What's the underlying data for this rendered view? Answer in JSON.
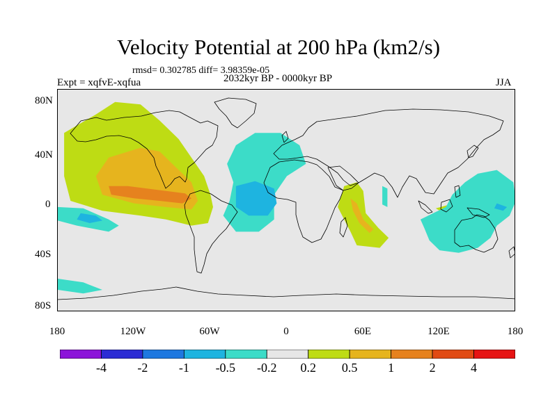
{
  "title": "Velocity Potential at 200 hPa (km2/s)",
  "stats": "rmsd= 0.302785  diff= 3.98359e-05",
  "experiment": "Expt = xqfvE-xqfua",
  "period": "2032kyr BP - 0000kyr BP",
  "season": "JJA",
  "lat_ticks": [
    "80N",
    "40N",
    "0",
    "40S",
    "80S"
  ],
  "lon_ticks": [
    "180",
    "120W",
    "60W",
    "0",
    "60E",
    "120E",
    "180"
  ],
  "colorbar": {
    "colors": [
      "#8c14d9",
      "#2c2cd4",
      "#1e78e0",
      "#1eb4e0",
      "#3cdcc8",
      "#e6e6e6",
      "#bedc14",
      "#e6b41e",
      "#e6821e",
      "#e14b14",
      "#e61414"
    ],
    "labels": [
      "-4",
      "-2",
      "-1",
      "-0.5",
      "-0.2",
      "0.2",
      "0.5",
      "1",
      "2",
      "4"
    ]
  },
  "legend_colors": {
    "pos1": "#bedc14",
    "pos2": "#e6b41e",
    "pos3": "#e6821e",
    "neg1": "#3cdcc8",
    "neg2": "#1eb4e0",
    "background": "#e7e7e7"
  },
  "map_data": {
    "type": "filled-contour",
    "projection": "cylindrical-equidistant",
    "lon_range": [
      -180,
      180
    ],
    "lat_range": [
      -90,
      90
    ],
    "regions": [
      {
        "level": 1,
        "sign": "+",
        "name": "eastern Pacific / North America",
        "points": [
          [
            -175,
            55
          ],
          [
            -150,
            70
          ],
          [
            -135,
            80
          ],
          [
            -115,
            78
          ],
          [
            -100,
            65
          ],
          [
            -85,
            50
          ],
          [
            -75,
            35
          ],
          [
            -65,
            20
          ],
          [
            -60,
            5
          ],
          [
            -58,
            -5
          ],
          [
            -62,
            -18
          ],
          [
            -75,
            -20
          ],
          [
            -95,
            -15
          ],
          [
            -115,
            -12
          ],
          [
            -145,
            -8
          ],
          [
            -170,
            0
          ],
          [
            -175,
            20
          ]
        ]
      },
      {
        "level": 2,
        "sign": "+",
        "name": "tropical eastern Pacific",
        "points": [
          [
            -150,
            20
          ],
          [
            -140,
            35
          ],
          [
            -115,
            43
          ],
          [
            -100,
            40
          ],
          [
            -90,
            30
          ],
          [
            -75,
            15
          ],
          [
            -70,
            0
          ],
          [
            -75,
            -7
          ],
          [
            -95,
            -5
          ],
          [
            -120,
            -2
          ],
          [
            -145,
            5
          ]
        ]
      },
      {
        "level": 3,
        "sign": "+",
        "name": "central American core",
        "points": [
          [
            -140,
            12
          ],
          [
            -125,
            12
          ],
          [
            -110,
            10
          ],
          [
            -95,
            8
          ],
          [
            -80,
            6
          ],
          [
            -75,
            2
          ],
          [
            -82,
            -2
          ],
          [
            -100,
            0
          ],
          [
            -120,
            2
          ],
          [
            -138,
            5
          ]
        ]
      },
      {
        "level": 1,
        "sign": "+",
        "name": "western Indian Ocean",
        "points": [
          [
            40,
            -5
          ],
          [
            45,
            12
          ],
          [
            55,
            15
          ],
          [
            60,
            8
          ],
          [
            62,
            -10
          ],
          [
            72,
            -22
          ],
          [
            80,
            -30
          ],
          [
            73,
            -38
          ],
          [
            55,
            -36
          ],
          [
            50,
            -25
          ],
          [
            45,
            -15
          ]
        ]
      },
      {
        "level": 2,
        "sign": "+",
        "name": "western Indian Ocean core",
        "points": [
          [
            50,
            2
          ],
          [
            55,
            -2
          ],
          [
            60,
            -15
          ],
          [
            68,
            -23
          ],
          [
            65,
            -26
          ],
          [
            57,
            -18
          ],
          [
            52,
            -8
          ]
        ]
      },
      {
        "level": 1,
        "sign": "+",
        "name": "maritime continent",
        "points": [
          [
            117,
            -6
          ],
          [
            128,
            -3
          ],
          [
            140,
            -5
          ],
          [
            150,
            -8
          ],
          [
            140,
            -13
          ],
          [
            125,
            -11
          ]
        ]
      },
      {
        "level": -1,
        "sign": "-",
        "name": "tropical Atlantic",
        "points": [
          [
            -40,
            45
          ],
          [
            -25,
            55
          ],
          [
            -5,
            55
          ],
          [
            10,
            45
          ],
          [
            15,
            30
          ],
          [
            0,
            20
          ],
          [
            -10,
            5
          ],
          [
            -10,
            -15
          ],
          [
            -22,
            -25
          ],
          [
            -40,
            -25
          ],
          [
            -50,
            -12
          ],
          [
            -45,
            0
          ],
          [
            -42,
            15
          ],
          [
            -47,
            30
          ]
        ]
      },
      {
        "level": -2,
        "sign": "-",
        "name": "equatorial Atlantic core",
        "points": [
          [
            -40,
            12
          ],
          [
            -25,
            16
          ],
          [
            -10,
            10
          ],
          [
            -8,
            -2
          ],
          [
            -15,
            -12
          ],
          [
            -30,
            -12
          ],
          [
            -40,
            -5
          ]
        ]
      },
      {
        "level": -1,
        "sign": "-",
        "name": "Arabian Sea strip",
        "points": [
          [
            75,
            12
          ],
          [
            79,
            10
          ],
          [
            79,
            -5
          ],
          [
            75,
            -3
          ]
        ]
      },
      {
        "level": -1,
        "sign": "-",
        "name": "western Pacific / Australia",
        "points": [
          [
            105,
            -15
          ],
          [
            115,
            -10
          ],
          [
            125,
            -5
          ],
          [
            130,
            5
          ],
          [
            140,
            15
          ],
          [
            150,
            22
          ],
          [
            165,
            25
          ],
          [
            178,
            15
          ],
          [
            180,
            0
          ],
          [
            175,
            -12
          ],
          [
            165,
            -20
          ],
          [
            160,
            -30
          ],
          [
            150,
            -38
          ],
          [
            135,
            -42
          ],
          [
            120,
            -40
          ],
          [
            112,
            -32
          ],
          [
            108,
            -22
          ]
        ]
      },
      {
        "level": -2,
        "sign": "-",
        "name": "western Pacific core",
        "points": [
          [
            165,
            -2
          ],
          [
            173,
            -5
          ],
          [
            170,
            -8
          ],
          [
            163,
            -6
          ]
        ]
      },
      {
        "level": -1,
        "sign": "-",
        "name": "South Pacific",
        "points": [
          [
            -180,
            -5
          ],
          [
            -160,
            -6
          ],
          [
            -140,
            -15
          ],
          [
            -132,
            -20
          ],
          [
            -140,
            -25
          ],
          [
            -165,
            -20
          ],
          [
            -180,
            -16
          ]
        ]
      },
      {
        "level": -2,
        "sign": "-",
        "name": "South Pacific core",
        "points": [
          [
            -162,
            -10
          ],
          [
            -150,
            -12
          ],
          [
            -145,
            -16
          ],
          [
            -155,
            -18
          ],
          [
            -165,
            -15
          ]
        ]
      },
      {
        "level": -1,
        "sign": "-",
        "name": "Southern Ocean",
        "points": [
          [
            -180,
            -63
          ],
          [
            -160,
            -66
          ],
          [
            -145,
            -72
          ],
          [
            -160,
            -75
          ],
          [
            -180,
            -72
          ]
        ]
      }
    ]
  }
}
